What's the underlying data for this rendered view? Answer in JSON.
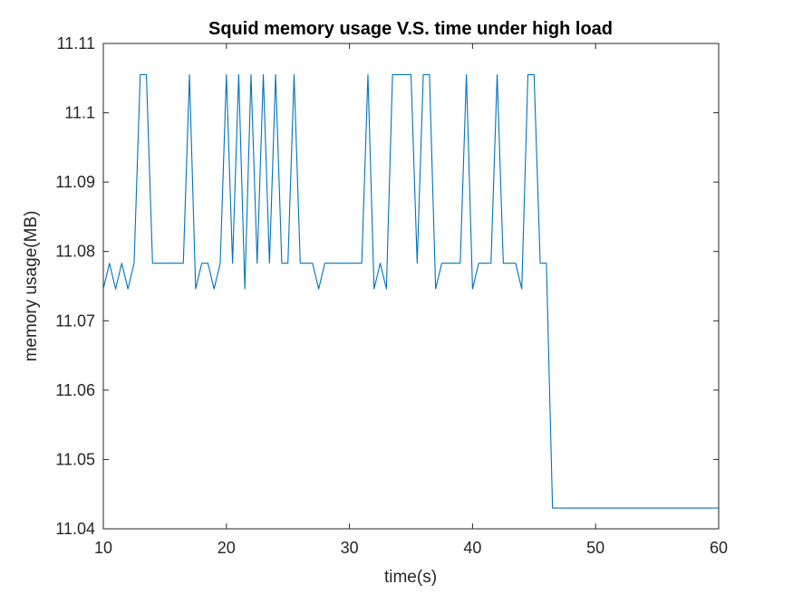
{
  "chart_data": {
    "type": "line",
    "title": "Squid memory usage V.S. time under high load",
    "xlabel": "time(s)",
    "ylabel": "memory usage(MB)",
    "xlim": [
      10,
      60
    ],
    "ylim": [
      11.04,
      11.11
    ],
    "xticks": [
      10,
      20,
      30,
      40,
      50,
      60
    ],
    "xtick_labels": [
      "10",
      "20",
      "30",
      "40",
      "50",
      "60"
    ],
    "yticks": [
      11.04,
      11.05,
      11.06,
      11.07,
      11.08,
      11.09,
      11.1,
      11.11
    ],
    "ytick_labels": [
      "11.04",
      "11.05",
      "11.06",
      "11.07",
      "11.08",
      "11.09",
      "11.1",
      "11.11"
    ],
    "grid": false,
    "box": true,
    "colors": {
      "line": "#0072BD",
      "axes": "#262626"
    },
    "series": [
      {
        "x": [
          10,
          10.5,
          11,
          11.5,
          12,
          12.5,
          13,
          13.5,
          14,
          14.5,
          15,
          15.5,
          16,
          16.5,
          17,
          17.5,
          18,
          18.5,
          19,
          19.5,
          20,
          20.5,
          21,
          21.5,
          22,
          22.5,
          23,
          23.5,
          24,
          24.5,
          25,
          25.5,
          26,
          26.5,
          27,
          27.5,
          28,
          28.5,
          29,
          29.5,
          30,
          30.5,
          31,
          31.5,
          32,
          32.5,
          33,
          33.5,
          34,
          34.5,
          35,
          35.5,
          36,
          36.5,
          37,
          37.5,
          38,
          38.5,
          39,
          39.5,
          40,
          40.5,
          41,
          41.5,
          42,
          42.5,
          43,
          43.5,
          44,
          44.5,
          45,
          45.5,
          46,
          46.5,
          47,
          47.5,
          48,
          48.5,
          49,
          49.5,
          50,
          50.5,
          51,
          51.5,
          52,
          52.5,
          53,
          53.5,
          54,
          54.5,
          55,
          55.5,
          56,
          56.5,
          57,
          57.5,
          58,
          58.5,
          59,
          59.5,
          60
        ],
        "values": [
          11.0746,
          11.0783,
          11.0746,
          11.0783,
          11.0746,
          11.0783,
          11.1055,
          11.1055,
          11.0783,
          11.0783,
          11.0783,
          11.0783,
          11.0783,
          11.0783,
          11.1055,
          11.0746,
          11.0783,
          11.0783,
          11.0746,
          11.0783,
          11.1055,
          11.0783,
          11.1055,
          11.0746,
          11.1055,
          11.0783,
          11.1055,
          11.0783,
          11.1055,
          11.0783,
          11.0783,
          11.1055,
          11.0783,
          11.0783,
          11.0783,
          11.0746,
          11.0783,
          11.0783,
          11.0783,
          11.0783,
          11.0783,
          11.0783,
          11.0783,
          11.1055,
          11.0746,
          11.0783,
          11.0746,
          11.1055,
          11.1055,
          11.1055,
          11.1055,
          11.0783,
          11.1055,
          11.1055,
          11.0746,
          11.0783,
          11.0783,
          11.0783,
          11.0783,
          11.1055,
          11.0746,
          11.0783,
          11.0783,
          11.0783,
          11.1055,
          11.0783,
          11.0783,
          11.0783,
          11.0746,
          11.1055,
          11.1055,
          11.0783,
          11.0783,
          11.043,
          11.043,
          11.043,
          11.043,
          11.043,
          11.043,
          11.043,
          11.043,
          11.043,
          11.043,
          11.043,
          11.043,
          11.043,
          11.043,
          11.043,
          11.043,
          11.043,
          11.043,
          11.043,
          11.043,
          11.043,
          11.043,
          11.043,
          11.043,
          11.043,
          11.043,
          11.043,
          11.043
        ]
      }
    ]
  }
}
